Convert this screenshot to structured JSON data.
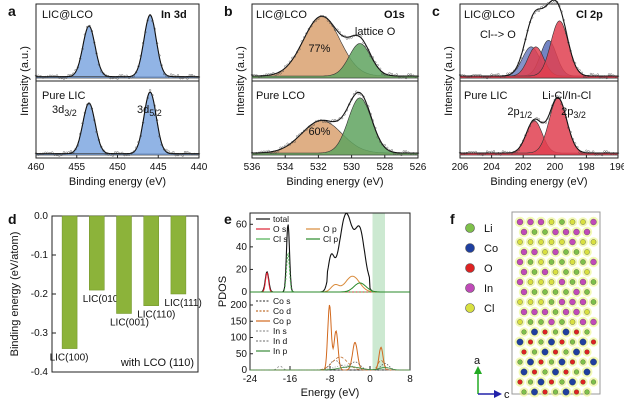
{
  "chart_data": [
    {
      "panel": "a",
      "type": "line",
      "xlabel": "Binding energy (eV)",
      "ylabel": "Intensity (a.u.)",
      "xlim": [
        460,
        440
      ],
      "xticks": [
        "460",
        "455",
        "450",
        "445",
        "440"
      ],
      "top_label": "LIC@LCO",
      "top_title": "In 3d",
      "bottom_label": "Pure LIC",
      "peak_labels": [
        "3d3/2",
        "3d5/2"
      ],
      "peaks": [
        {
          "name": "3d3/2",
          "center": 453.5,
          "height": 0.8
        },
        {
          "name": "3d5/2",
          "center": 446.0,
          "height": 1.0
        }
      ],
      "fill_color": "#7ea7e0"
    },
    {
      "panel": "b",
      "type": "line",
      "xlabel": "Binding energy (eV)",
      "ylabel": "Intensity (a.u.)",
      "xlim": [
        536,
        526
      ],
      "xticks": [
        "536",
        "534",
        "532",
        "530",
        "528",
        "526"
      ],
      "top_label": "LIC@LCO",
      "top_title": "O1s",
      "bottom_label": "Pure LCO",
      "annotations": [
        "77%",
        "lattice O",
        "60%"
      ],
      "top_peaks": [
        {
          "center": 531.8,
          "height": 0.95,
          "fraction": 77
        },
        {
          "center": 529.5,
          "height": 0.55
        }
      ],
      "bottom_peaks": [
        {
          "center": 531.8,
          "height": 0.55,
          "fraction": 60
        },
        {
          "center": 529.5,
          "height": 0.9
        }
      ],
      "colors": [
        "#d9a170",
        "#5fa35f"
      ]
    },
    {
      "panel": "c",
      "type": "line",
      "xlabel": "Binding energy (eV)",
      "ylabel": "Intensity (a.u.)",
      "xlim": [
        206,
        196
      ],
      "xticks": [
        "206",
        "204",
        "202",
        "200",
        "198",
        "196"
      ],
      "top_label": "LIC@LCO",
      "top_title": "Cl 2p",
      "top_annotation": "Cl--> O",
      "bottom_label": "Pure LIC",
      "bottom_annotation": "Li-Cl/In-Cl",
      "peak_labels": [
        "2p1/2",
        "2p3/2"
      ],
      "colors": [
        "#e04050",
        "#6f7fc0",
        "#dd3344"
      ]
    },
    {
      "panel": "d",
      "type": "bar",
      "ylabel": "Binding energy (eV/atom)",
      "ylim": [
        -0.4,
        0
      ],
      "yticks": [
        "0.0",
        "-0.1",
        "-0.2",
        "-0.3",
        "-0.4"
      ],
      "categories": [
        "LIC(100)",
        "LIC(010)",
        "LIC(001)",
        "LIC(110)",
        "LIC(111)"
      ],
      "values": [
        -0.34,
        -0.19,
        -0.25,
        -0.23,
        -0.2
      ],
      "annotation": "with LCO (110)",
      "bar_color": "#8cb33a"
    },
    {
      "panel": "e",
      "type": "line",
      "xlabel": "Energy (eV)",
      "ylabel": "PDOS",
      "xlim": [
        -24,
        8
      ],
      "xticks": [
        "-24",
        "-16",
        "-8",
        "0",
        "8"
      ],
      "top_yticks": [
        "0",
        "20",
        "40",
        "60"
      ],
      "bottom_yticks": [
        "0",
        "50",
        "100",
        "150",
        "200"
      ],
      "top_legend": [
        "total",
        "O s",
        "O p",
        "Cl s",
        "Cl p"
      ],
      "bottom_legend": [
        "Co s",
        "Co d",
        "Co p",
        "In s",
        "In d",
        "In p"
      ],
      "highlight_range": [
        0.5,
        3
      ]
    },
    {
      "panel": "f",
      "type": "diagram",
      "legend": [
        {
          "label": "Li",
          "color": "#7ec04a"
        },
        {
          "label": "Co",
          "color": "#1f3f9f"
        },
        {
          "label": "O",
          "color": "#dd2222"
        },
        {
          "label": "In",
          "color": "#c04ab8"
        },
        {
          "label": "Cl",
          "color": "#d8e040"
        }
      ],
      "axes": [
        "a",
        "c"
      ]
    }
  ]
}
